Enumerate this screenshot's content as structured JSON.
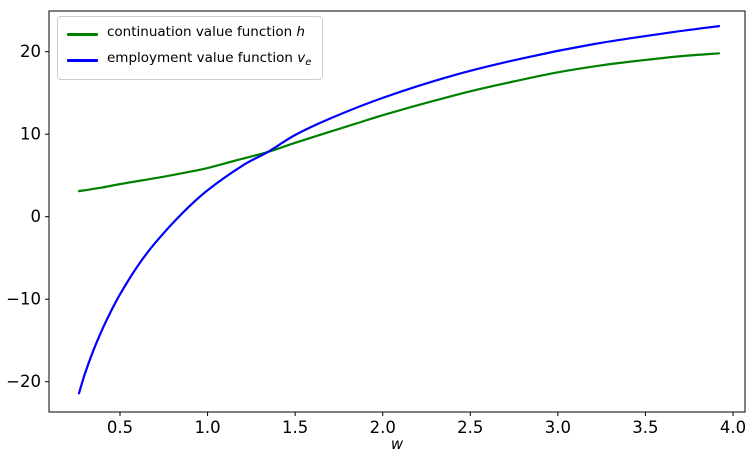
{
  "figure": {
    "background": "#ffffff",
    "axis_color": "#000000"
  },
  "legend": {
    "position": "upper left",
    "items": [
      {
        "label_text": "continuation value function ",
        "label_math": "v",
        "label_sub": "",
        "text_plain": "continuation value function h",
        "math": "h",
        "sub": "",
        "color": "#008000"
      },
      {
        "label_text": "employment value function ",
        "label_math": "v",
        "label_sub": "e",
        "text_plain": "employment value function ve",
        "math": "v",
        "sub": "e",
        "color": "#0000ff"
      }
    ]
  },
  "chart_data": {
    "type": "line",
    "title": "",
    "xlabel": "w",
    "ylabel": "",
    "grid": false,
    "legend_position": "upper left",
    "axis_color": "#000000",
    "xlim": [
      0.0946,
      4.0685
    ],
    "ylim": [
      -23.67,
      24.93
    ],
    "x_ticks": [
      0.5,
      1.0,
      1.5,
      2.0,
      2.5,
      3.0,
      3.5,
      4.0
    ],
    "x_tick_labels": [
      "0.5",
      "1.0",
      "1.5",
      "2.0",
      "2.5",
      "3.0",
      "3.5",
      "4.0"
    ],
    "y_ticks": [
      -20,
      -10,
      0,
      10,
      20
    ],
    "y_tick_labels": [
      "−20",
      "−10",
      "0",
      "10",
      "20"
    ],
    "series": [
      {
        "id": "h",
        "name": "continuation value function h",
        "color": "#008000",
        "line_width": 2.2,
        "points": [
          [
            0.266,
            3.1
          ],
          [
            0.4,
            3.55
          ],
          [
            0.5,
            3.95
          ],
          [
            0.625,
            4.4
          ],
          [
            0.75,
            4.85
          ],
          [
            0.875,
            5.35
          ],
          [
            1.0,
            5.9
          ],
          [
            1.15,
            6.75
          ],
          [
            1.345,
            7.85
          ],
          [
            1.5,
            8.95
          ],
          [
            1.7,
            10.3
          ],
          [
            1.85,
            11.3
          ],
          [
            2.0,
            12.3
          ],
          [
            2.25,
            13.8
          ],
          [
            2.5,
            15.2
          ],
          [
            2.75,
            16.4
          ],
          [
            3.0,
            17.5
          ],
          [
            3.25,
            18.35
          ],
          [
            3.5,
            19.0
          ],
          [
            3.7,
            19.45
          ],
          [
            3.92,
            19.8
          ]
        ]
      },
      {
        "id": "ve",
        "name": "employment value function ve",
        "color": "#0000ff",
        "line_width": 2.2,
        "points": [
          [
            0.266,
            -21.4
          ],
          [
            0.3,
            -19.0
          ],
          [
            0.35,
            -16.1
          ],
          [
            0.4,
            -13.6
          ],
          [
            0.45,
            -11.4
          ],
          [
            0.5,
            -9.4
          ],
          [
            0.6,
            -6.0
          ],
          [
            0.7,
            -3.2
          ],
          [
            0.85,
            0.3
          ],
          [
            1.0,
            3.2
          ],
          [
            1.2,
            6.2
          ],
          [
            1.345,
            7.85
          ],
          [
            1.5,
            9.9
          ],
          [
            1.7,
            11.9
          ],
          [
            2.0,
            14.4
          ],
          [
            2.4,
            17.1
          ],
          [
            2.8,
            19.2
          ],
          [
            3.2,
            20.9
          ],
          [
            3.6,
            22.2
          ],
          [
            3.92,
            23.1
          ]
        ]
      }
    ]
  }
}
